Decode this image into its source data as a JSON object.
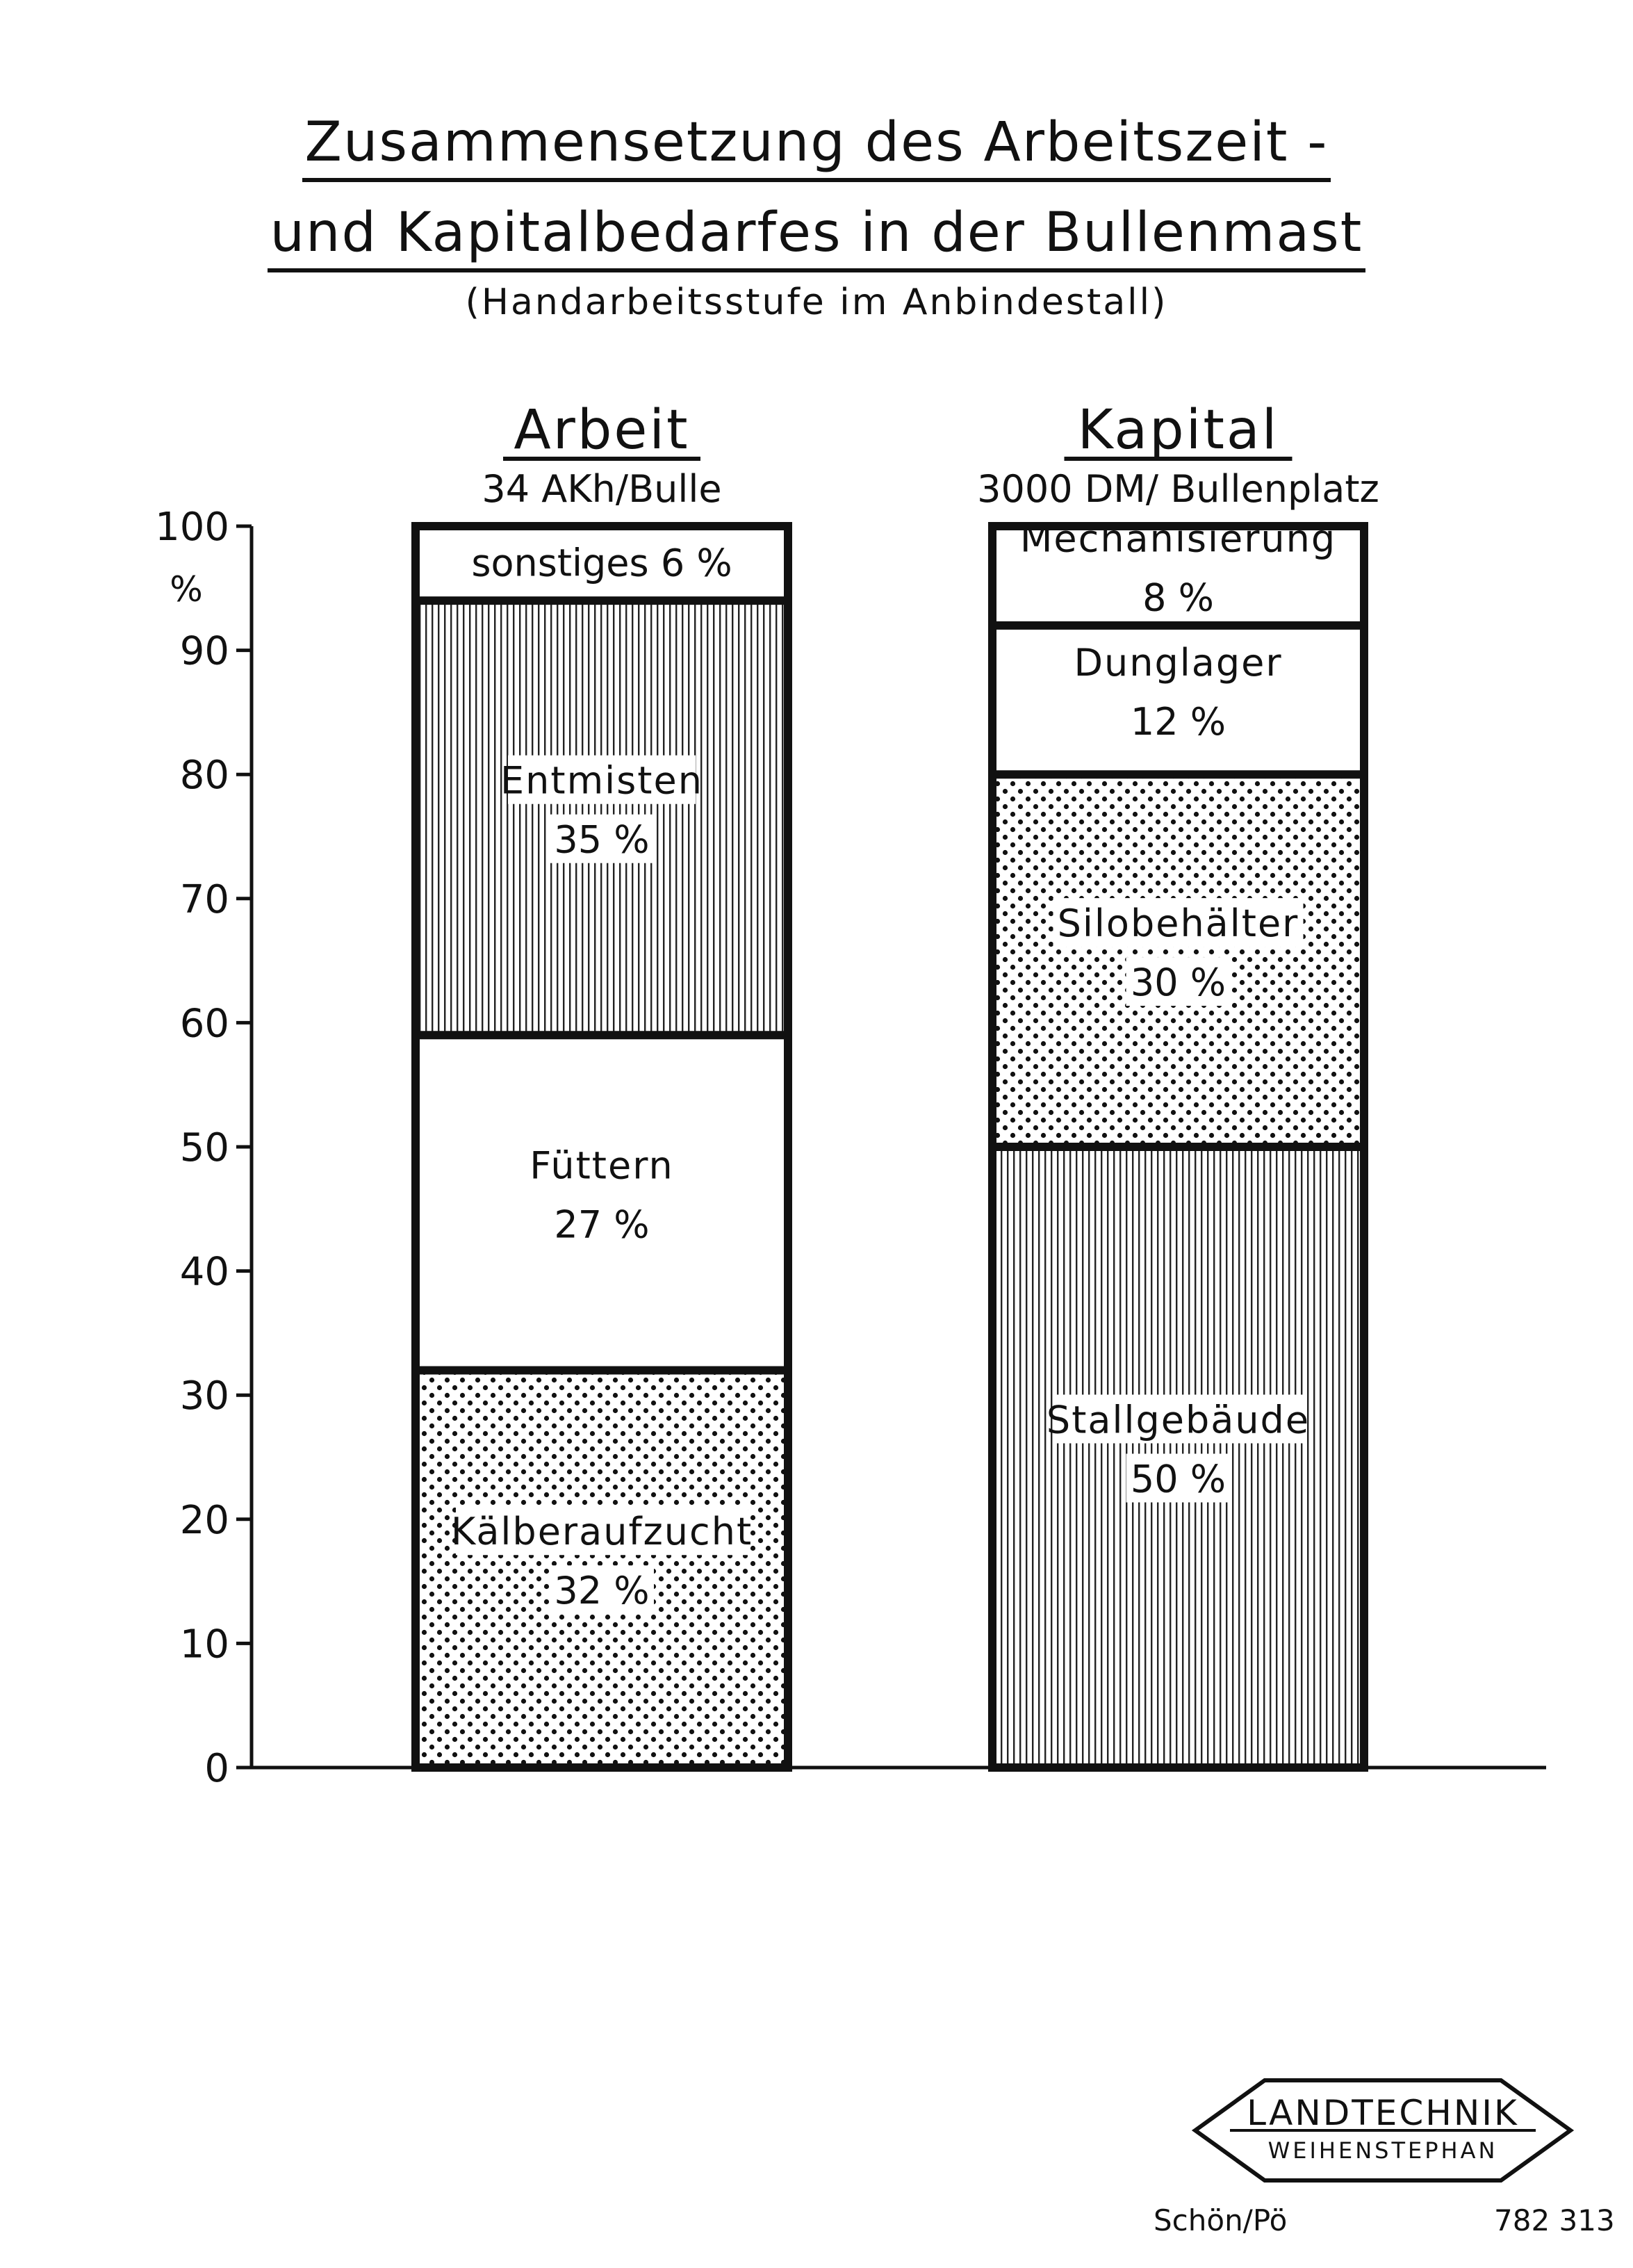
{
  "title": {
    "line1": "Zusammensetzung des Arbeitszeit -",
    "line2": "und Kapitalbedarfes in der Bullenmast",
    "subtitle": "(Handarbeitsstufe im Anbindestall)"
  },
  "chart_data": {
    "type": "bar",
    "stacked": true,
    "ylim": [
      0,
      100
    ],
    "ylabel": "%",
    "yticks": [
      "0",
      "10",
      "20",
      "30",
      "40",
      "50",
      "60",
      "70",
      "80",
      "90",
      "100"
    ],
    "grid": false,
    "bars": [
      {
        "name": "Arbeit",
        "unit_label": "34 AKh/Bulle",
        "segments": [
          {
            "label": "Kälberaufzucht",
            "value": 32,
            "value_label": "32 %",
            "pattern": "dots"
          },
          {
            "label": "Füttern",
            "value": 27,
            "value_label": "27 %",
            "pattern": "none"
          },
          {
            "label": "Entmisten",
            "value": 35,
            "value_label": "35 %",
            "pattern": "vlines"
          },
          {
            "label": "sonstiges",
            "value": 6,
            "value_label": "6 %",
            "pattern": "none"
          }
        ]
      },
      {
        "name": "Kapital",
        "unit_label": "3000 DM/ Bullenplatz",
        "segments": [
          {
            "label": "Stallgebäude",
            "value": 50,
            "value_label": "50 %",
            "pattern": "vlines"
          },
          {
            "label": "Silobehälter",
            "value": 30,
            "value_label": "30 %",
            "pattern": "dots"
          },
          {
            "label": "Dunglager",
            "value": 12,
            "value_label": "12 %",
            "pattern": "none"
          },
          {
            "label": "Mechanisierung",
            "value": 8,
            "value_label": "8 %",
            "pattern": "none"
          }
        ]
      }
    ]
  },
  "stamp": {
    "line1": "LANDTECHNIK",
    "line2": "WEIHENSTEPHAN"
  },
  "footer": {
    "author": "Schön/Pö",
    "number": "782 313"
  },
  "colors": {
    "ink": "#111111",
    "paper": "#ffffff"
  }
}
